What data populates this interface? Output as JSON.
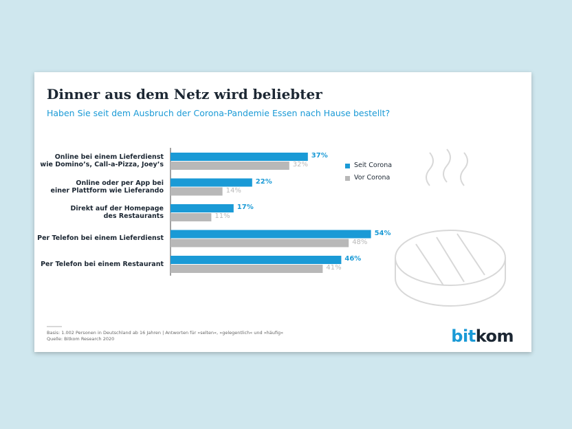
{
  "chart_data": {
    "type": "bar",
    "orientation": "horizontal",
    "title": "Dinner aus dem Netz wird beliebter",
    "subtitle": "Haben Sie seit dem Ausbruch der Corona-Pandemie Essen nach Hause bestellt?",
    "categories": [
      "Online bei einem Lieferdienst\nwie Domino’s, Call-a-Pizza, Joey’s",
      "Online oder per App bei\neiner Plattform wie Lieferando",
      "Direkt auf der Homepage\ndes Restaurants",
      "Per Telefon bei einem Lieferdienst",
      "Per Telefon bei einem Restaurant"
    ],
    "series": [
      {
        "name": "Seit Corona",
        "color": "#1a9ad6",
        "values": [
          37,
          22,
          17,
          54,
          46
        ],
        "value_labels": [
          "37%",
          "22%",
          "17%",
          "54%",
          "46%"
        ]
      },
      {
        "name": "Vor Corona",
        "color": "#b8b8b8",
        "values": [
          32,
          14,
          11,
          48,
          41
        ],
        "value_labels": [
          "32%",
          "14%",
          "11%",
          "48%",
          "41%"
        ]
      }
    ],
    "legend": "right",
    "notes": "Basis: 1.002 Personen in Deutschland ab 16 Jahren | Antworten für »selten«, »gelegentlich« und »häufig«",
    "source": "Quelle: Bitkom Research 2020",
    "logo": [
      "bit",
      "kom"
    ]
  }
}
